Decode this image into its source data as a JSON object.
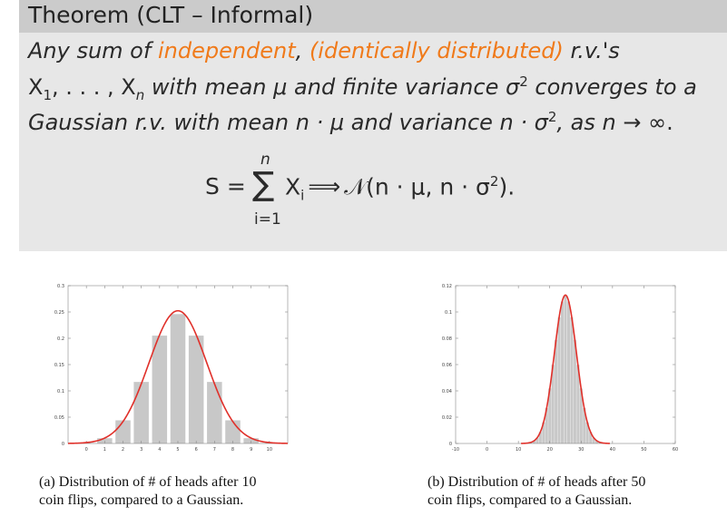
{
  "theorem": {
    "title": "Theorem (CLT – Informal)",
    "line1": {
      "prefix": "Any sum of ",
      "word_independent": "independent",
      "comma": ", ",
      "paren_iid": "(identically distributed)",
      "suffix": " r.v.'s"
    },
    "line2": {
      "x1": "X",
      "x1_sub": "1",
      "dots": ", . . . , ",
      "xn": "X",
      "xn_sub": "n",
      "t1": " with mean ",
      "mu": "μ",
      "t2": " and finite variance ",
      "sigma": "σ",
      "sigma_sup": "2",
      "t3": " converges to a"
    },
    "line3": {
      "t1": "Gaussian r.v. with mean ",
      "n1": "n",
      "dot1": " · ",
      "mu": "μ",
      "t2": " and variance ",
      "n2": "n",
      "dot2": " · ",
      "sigma": "σ",
      "sigma_sup": "2",
      "t3": ", as ",
      "n3": "n",
      "arrow": " → ∞."
    },
    "formula": {
      "lhs": "S =",
      "sum_symbol": "∑",
      "upper": "n",
      "lower": "i=1",
      "term": "X",
      "term_sub": "i",
      "implies": "⟹",
      "normal": "𝒩",
      "args_open": "(n · μ, n · σ",
      "args_sup": "2",
      "args_close": ")."
    }
  },
  "figures": [
    {
      "caption_line1": "(a) Distribution of # of heads after 10",
      "caption_line2": "coin flips, compared to a Gaussian."
    },
    {
      "caption_line1": "(b) Distribution of # of heads after 50",
      "caption_line2": "coin flips, compared to a Gaussian."
    }
  ],
  "chart_data": [
    {
      "type": "bar",
      "title": "",
      "xlabel": "",
      "ylabel": "",
      "categories": [
        "0",
        "1",
        "2",
        "3",
        "4",
        "5",
        "6",
        "7",
        "8",
        "9",
        "10"
      ],
      "values": [
        0.001,
        0.01,
        0.044,
        0.117,
        0.205,
        0.246,
        0.205,
        0.117,
        0.044,
        0.01,
        0.001
      ],
      "xlim": [
        -1,
        11
      ],
      "ylim": [
        0,
        0.3
      ],
      "xticks": [
        "0",
        "1",
        "2",
        "3",
        "4",
        "5",
        "6",
        "7",
        "8",
        "9",
        "10"
      ],
      "yticks": [
        "0",
        "0.05",
        "0.1",
        "0.15",
        "0.2",
        "0.25",
        "0.3"
      ],
      "overlay": {
        "type": "line",
        "label": "",
        "mean": 5,
        "variance": 2.5,
        "color": "#e0302a"
      },
      "bar_color": "#c8c8c8"
    },
    {
      "type": "bar",
      "title": "",
      "xlabel": "",
      "ylabel": "",
      "categories_range": [
        0,
        50
      ],
      "values_note": "",
      "n": 50,
      "p": 0.5,
      "xlim": [
        -10,
        60
      ],
      "ylim": [
        0,
        0.12
      ],
      "xticks": [
        "-10",
        "0",
        "10",
        "20",
        "30",
        "40",
        "50",
        "60"
      ],
      "yticks": [
        "0",
        "0.02",
        "0.04",
        "0.06",
        "0.08",
        "0.1",
        "0.12"
      ],
      "overlay": {
        "type": "line",
        "label": "",
        "mean": 25,
        "variance": 12.5,
        "color": "#e0302a"
      },
      "bar_color": "#c8c8c8"
    }
  ]
}
